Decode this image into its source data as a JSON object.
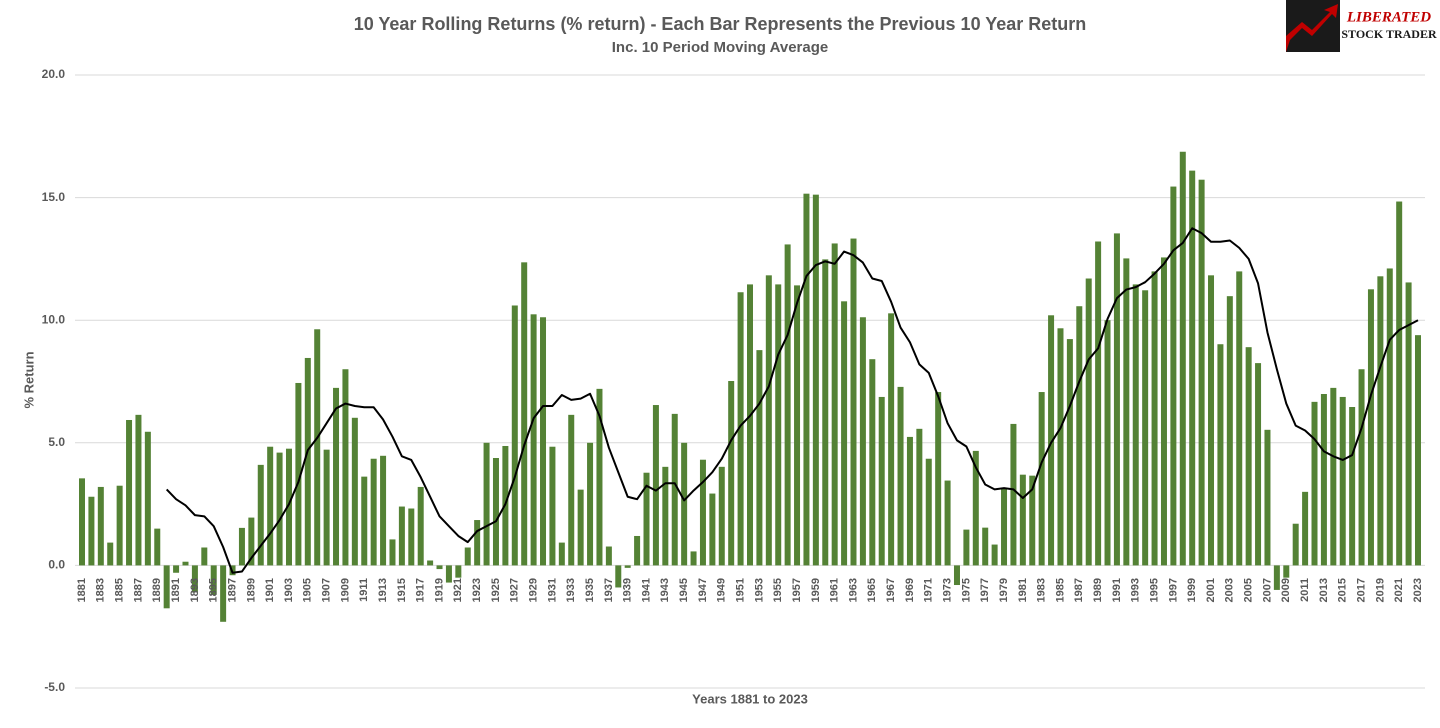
{
  "chart_data": {
    "type": "bar",
    "title": "10 Year Rolling Returns (% return) - Each Bar Represents the Previous 10 Year Return",
    "subtitle": "Inc. 10 Period Moving Average",
    "y_label": "% Return",
    "x_label": "Years 1881 to 2023",
    "logo": [
      "LIBERATED",
      "STOCK TRADER"
    ],
    "ylim": [
      -5,
      20
    ],
    "yticks": [
      {
        "value": -5,
        "label": "-5.0"
      },
      {
        "value": 0,
        "label": "0.0"
      },
      {
        "value": 5,
        "label": "5.0"
      },
      {
        "value": 10,
        "label": "10.0"
      },
      {
        "value": 15,
        "label": "15.0"
      },
      {
        "value": 20,
        "label": "20.0"
      }
    ],
    "grid": true,
    "categories": [
      "1881",
      null,
      "1883",
      null,
      "1885",
      null,
      "1887",
      null,
      "1889",
      null,
      "1891",
      null,
      "1893",
      null,
      "1895",
      null,
      "1897",
      null,
      "1899",
      null,
      "1901",
      null,
      "1903",
      null,
      "1905",
      null,
      "1907",
      null,
      "1909",
      null,
      "1911",
      null,
      "1913",
      null,
      "1915",
      null,
      "1917",
      null,
      "1919",
      null,
      "1921",
      null,
      "1923",
      null,
      "1925",
      null,
      "1927",
      null,
      "1929",
      null,
      "1931",
      null,
      "1933",
      null,
      "1935",
      null,
      "1937",
      null,
      "1939",
      null,
      "1941",
      null,
      "1943",
      null,
      "1945",
      null,
      "1947",
      null,
      "1949",
      null,
      "1951",
      null,
      "1953",
      null,
      "1955",
      null,
      "1957",
      null,
      "1959",
      null,
      "1961",
      null,
      "1963",
      null,
      "1965",
      null,
      "1967",
      null,
      "1969",
      null,
      "1971",
      null,
      "1973",
      null,
      "1975",
      null,
      "1977",
      null,
      "1979",
      null,
      "1981",
      null,
      "1983",
      null,
      "1985",
      null,
      "1987",
      null,
      "1989",
      null,
      "1991",
      null,
      "1993",
      null,
      "1995",
      null,
      "1997",
      null,
      "1999",
      null,
      "2001",
      null,
      "2003",
      null,
      "2005",
      null,
      "2007",
      null,
      "2009",
      null,
      "2011",
      null,
      "2013",
      null,
      "2015",
      null,
      "2017",
      null,
      "2019",
      null,
      "2021",
      null,
      "2023"
    ],
    "series": [
      {
        "type": "bar",
        "color": "#548235",
        "values": [
          3.55,
          2.8,
          3.2,
          0.93,
          3.25,
          5.93,
          6.14,
          5.45,
          1.5,
          -1.75,
          -0.3,
          0.15,
          -1.1,
          0.73,
          -1.2,
          -2.3,
          -0.4,
          1.53,
          1.95,
          4.1,
          4.84,
          4.6,
          4.76,
          7.44,
          8.46,
          9.63,
          4.72,
          7.24,
          8.0,
          6.02,
          3.62,
          4.35,
          4.47,
          1.06,
          2.4,
          2.32,
          3.2,
          0.2,
          -0.15,
          -0.7,
          -0.5,
          0.73,
          1.85,
          5.0,
          4.38,
          4.87,
          10.6,
          12.36,
          10.24,
          10.12,
          4.84,
          0.93,
          6.14,
          3.09,
          5.0,
          7.2,
          0.77,
          -0.9,
          -0.1,
          1.2,
          3.78,
          6.54,
          4.02,
          6.18,
          5.0,
          0.57,
          4.31,
          2.93,
          4.02,
          7.52,
          11.14,
          11.46,
          8.78,
          11.83,
          11.46,
          13.09,
          11.42,
          15.16,
          15.12,
          12.48,
          13.13,
          10.77,
          13.33,
          10.12,
          8.41,
          6.87,
          10.28,
          7.28,
          5.24,
          5.57,
          4.35,
          7.07,
          3.46,
          -0.8,
          1.46,
          4.67,
          1.54,
          0.85,
          3.17,
          5.77,
          3.7,
          3.66,
          7.07,
          10.2,
          9.67,
          9.23,
          10.57,
          11.7,
          13.21,
          10.0,
          13.54,
          12.52,
          11.46,
          11.22,
          11.99,
          12.56,
          15.45,
          16.87,
          16.1,
          15.73,
          11.83,
          9.02,
          10.98,
          11.99,
          8.9,
          8.25,
          5.53,
          -1.0,
          -0.5,
          1.7,
          3.0,
          6.67,
          6.99,
          7.24,
          6.87,
          6.46,
          8.0,
          11.26,
          11.79,
          12.11,
          14.84,
          11.54,
          9.39
        ]
      },
      {
        "type": "line",
        "color": "#000000",
        "values": [
          null,
          null,
          null,
          null,
          null,
          null,
          null,
          null,
          null,
          3.1,
          2.7,
          2.45,
          2.05,
          2.0,
          1.6,
          0.75,
          -0.3,
          -0.25,
          0.3,
          0.8,
          1.3,
          1.85,
          2.5,
          3.4,
          4.7,
          5.2,
          5.8,
          6.4,
          6.6,
          6.5,
          6.45,
          6.45,
          5.95,
          5.25,
          4.45,
          4.3,
          3.6,
          2.8,
          2.0,
          1.6,
          1.2,
          0.95,
          1.4,
          1.6,
          1.8,
          2.5,
          3.6,
          4.9,
          6.0,
          6.5,
          6.5,
          6.95,
          6.75,
          6.8,
          7.0,
          6.1,
          4.8,
          3.8,
          2.8,
          2.7,
          3.25,
          3.05,
          3.35,
          3.35,
          2.65,
          3.05,
          3.4,
          3.8,
          4.35,
          5.1,
          5.7,
          6.1,
          6.6,
          7.3,
          8.6,
          9.4,
          10.7,
          11.8,
          12.25,
          12.4,
          12.3,
          12.8,
          12.65,
          12.35,
          11.7,
          11.6,
          10.75,
          9.7,
          9.1,
          8.2,
          7.85,
          6.9,
          5.8,
          5.1,
          4.85,
          4.0,
          3.3,
          3.1,
          3.15,
          3.1,
          2.75,
          3.1,
          4.2,
          5.0,
          5.6,
          6.5,
          7.5,
          8.4,
          8.85,
          10.05,
          10.9,
          11.25,
          11.35,
          11.55,
          11.9,
          12.3,
          12.85,
          13.15,
          13.75,
          13.55,
          13.2,
          13.2,
          13.25,
          12.95,
          12.5,
          11.5,
          9.5,
          8.0,
          6.6,
          5.7,
          5.5,
          5.15,
          4.65,
          4.45,
          4.3,
          4.5,
          5.6,
          6.95,
          8.1,
          9.2,
          9.6,
          9.8,
          10.0
        ]
      }
    ]
  }
}
